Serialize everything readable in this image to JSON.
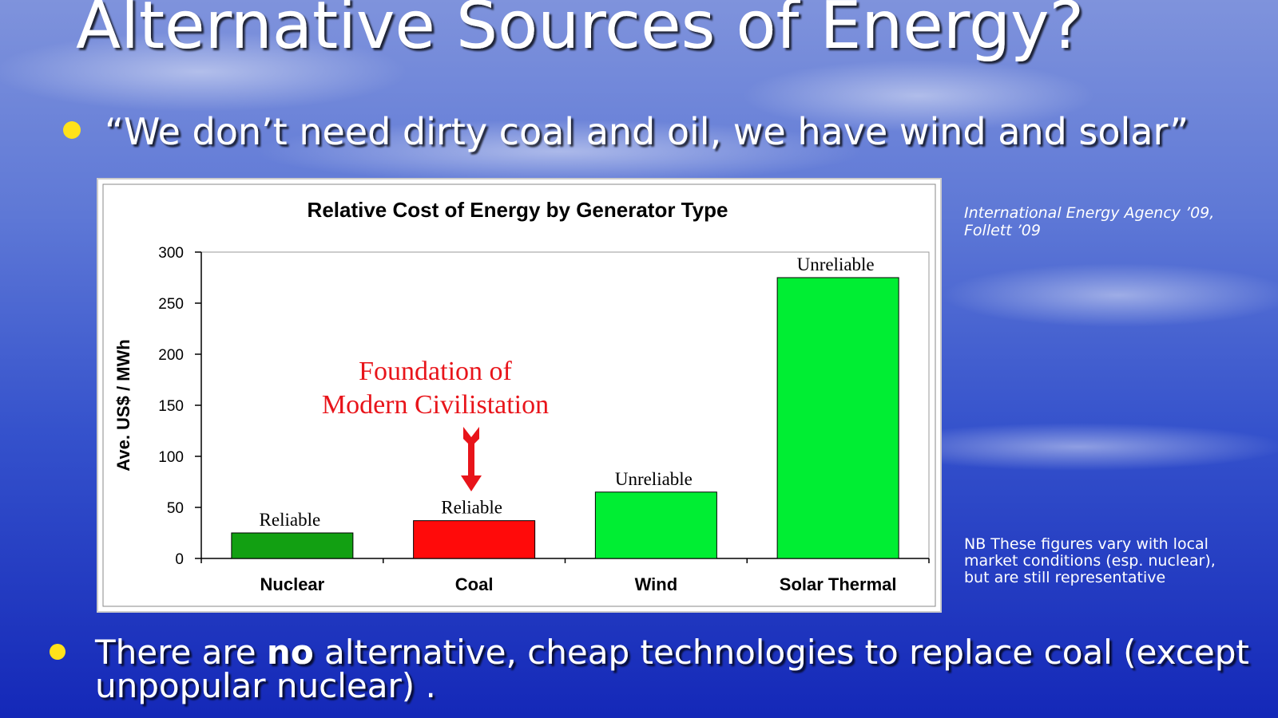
{
  "slide": {
    "title": "Alternative Sources of Energy?",
    "quote": "“We don’t need dirty coal and oil, we have wind and solar”",
    "source": [
      "International Energy Agency ’09,",
      "Follett ’09"
    ],
    "note": [
      "NB These figures vary with local",
      "market conditions (esp. nuclear),",
      "but are still representative"
    ],
    "bottom_bullet": {
      "line1": [
        "There are ",
        "no",
        " alternative, cheap technologies to replace coal (except"
      ],
      "line2": "unpopular nuclear) ."
    }
  },
  "chart_data": {
    "type": "bar",
    "title": "Relative Cost of Energy by Generator Type",
    "y_label": "Ave. US$ / MWh",
    "categories": [
      "Nuclear",
      "Coal",
      "Wind",
      "Solar Thermal"
    ],
    "values": [
      25,
      37,
      65,
      275
    ],
    "colors": [
      "#12a012",
      "#ff0a0a",
      "#00ee33",
      "#00ee33"
    ],
    "bar_annotations": [
      "Reliable",
      "Reliable",
      "Unreliable",
      "Unreliable"
    ],
    "callout": [
      "Foundation of",
      "Modern Civilistation"
    ],
    "ylim": [
      0,
      300
    ],
    "yticks": [
      0,
      50,
      100,
      150,
      200,
      250,
      300
    ],
    "grid": false
  }
}
